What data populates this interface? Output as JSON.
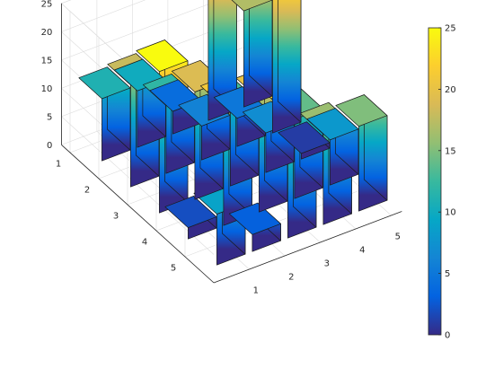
{
  "chart_data": {
    "type": "bar3",
    "title": "",
    "xlabel": "",
    "ylabel": "",
    "zlabel": "",
    "x_ticks": [
      "1",
      "2",
      "3",
      "4",
      "5"
    ],
    "y_ticks": [
      "1",
      "2",
      "3",
      "4",
      "5"
    ],
    "z_ticks": [
      "0",
      "5",
      "10",
      "15",
      "20",
      "25"
    ],
    "zlim": [
      0,
      25
    ],
    "grid": true,
    "colormap": "parula",
    "colorbar": {
      "location": "right",
      "ticks": [
        "0",
        "5",
        "10",
        "15",
        "20",
        "25"
      ],
      "limits": [
        0,
        25
      ]
    },
    "data": [
      [
        17,
        24,
        1,
        8,
        15
      ],
      [
        23,
        5,
        7,
        14,
        16
      ],
      [
        4,
        6,
        13,
        20,
        22
      ],
      [
        10,
        12,
        19,
        21,
        3
      ],
      [
        11,
        18,
        25,
        2,
        9
      ]
    ],
    "colors": {
      "edge": "#1a1a1a",
      "grid": "#dcdcdc",
      "axis": "#262626",
      "text": "#262626"
    }
  }
}
